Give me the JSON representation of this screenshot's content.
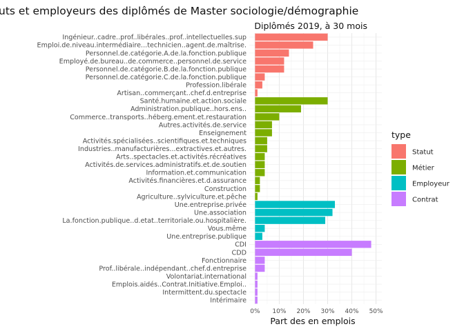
{
  "chart_data": {
    "type": "bar",
    "orientation": "horizontal",
    "title": "uts et employeurs des diplômés de Master sociologie/démographie",
    "subtitle": "Diplômés 2019, à 30 mois",
    "xlabel": "Part des en emplois",
    "ylabel": "",
    "xlim": [
      0,
      0.5
    ],
    "x_ticks": [
      "0%",
      "10%",
      "20%",
      "30%",
      "40%",
      "50%"
    ],
    "grid": true,
    "legend": {
      "title": "type",
      "placement": "right",
      "entries": [
        {
          "name": "Statut",
          "color": "#F8766D"
        },
        {
          "name": "Métier",
          "color": "#7CAE00"
        },
        {
          "name": "Employeur",
          "color": "#00BFC4"
        },
        {
          "name": "Contrat",
          "color": "#C77CFF"
        }
      ]
    },
    "categories": [
      {
        "label": "Ingénieur..cadre..prof..libérales..prof..intellectuelles.sup",
        "value": 0.3,
        "type": "Statut"
      },
      {
        "label": "Emploi.de.niveau.intermédiaire...technicien..agent.de.maîtrise.",
        "value": 0.24,
        "type": "Statut"
      },
      {
        "label": "Personnel.de.catégorie.A.de.la.fonction.publique",
        "value": 0.14,
        "type": "Statut"
      },
      {
        "label": "Employé.de.bureau..de.commerce..personnel.de.service",
        "value": 0.12,
        "type": "Statut"
      },
      {
        "label": "Personnel.de.catégorie.B.de.la.fonction.publique",
        "value": 0.12,
        "type": "Statut"
      },
      {
        "label": "Personnel.de.catégorie.C.de.la.fonction.publique",
        "value": 0.04,
        "type": "Statut"
      },
      {
        "label": "Profession.libérale",
        "value": 0.03,
        "type": "Statut"
      },
      {
        "label": "Artisan..commerçant..chef.d.entreprise",
        "value": 0.01,
        "type": "Statut"
      },
      {
        "label": "Santé.humaine.et.action.sociale",
        "value": 0.3,
        "type": "Métier"
      },
      {
        "label": "Administration.publique..hors.ens..",
        "value": 0.19,
        "type": "Métier"
      },
      {
        "label": "Commerce..transports..héberg.ement.et.restauration",
        "value": 0.1,
        "type": "Métier"
      },
      {
        "label": "Autres.activités.de.service",
        "value": 0.07,
        "type": "Métier"
      },
      {
        "label": "Enseignement",
        "value": 0.07,
        "type": "Métier"
      },
      {
        "label": "Activités.spécialisées..scientifiques.et.techniques",
        "value": 0.05,
        "type": "Métier"
      },
      {
        "label": "Industries..manufacturières...extractives.et.autres.",
        "value": 0.05,
        "type": "Métier"
      },
      {
        "label": "Arts..spectacles.et.activités.récréatives",
        "value": 0.04,
        "type": "Métier"
      },
      {
        "label": "Activités.de.services.administratifs.et.de.soutien",
        "value": 0.04,
        "type": "Métier"
      },
      {
        "label": "Information.et.communication",
        "value": 0.04,
        "type": "Métier"
      },
      {
        "label": "Activités.financières.et.d.assurance",
        "value": 0.02,
        "type": "Métier"
      },
      {
        "label": "Construction",
        "value": 0.02,
        "type": "Métier"
      },
      {
        "label": "Agriculture..sylviculture.et.pêche",
        "value": 0.01,
        "type": "Métier"
      },
      {
        "label": "Une.entreprise.privée",
        "value": 0.33,
        "type": "Employeur"
      },
      {
        "label": "Une.association",
        "value": 0.32,
        "type": "Employeur"
      },
      {
        "label": "La.fonction.publique..d.etat..territoriale.ou.hospitalière.",
        "value": 0.29,
        "type": "Employeur"
      },
      {
        "label": "Vous.même",
        "value": 0.04,
        "type": "Employeur"
      },
      {
        "label": "Une.entreprise.publique",
        "value": 0.03,
        "type": "Employeur"
      },
      {
        "label": "CDI",
        "value": 0.48,
        "type": "Contrat"
      },
      {
        "label": "CDD",
        "value": 0.4,
        "type": "Contrat"
      },
      {
        "label": "Fonctionnaire",
        "value": 0.04,
        "type": "Contrat"
      },
      {
        "label": "Prof..libérale..indépendant..chef.d.entreprise",
        "value": 0.04,
        "type": "Contrat"
      },
      {
        "label": "Volontariat.international",
        "value": 0.01,
        "type": "Contrat"
      },
      {
        "label": "Emplois.aidés..Contrat.Initiative.Emploi..",
        "value": 0.01,
        "type": "Contrat"
      },
      {
        "label": "Intermittent.du.spectacle",
        "value": 0.01,
        "type": "Contrat"
      },
      {
        "label": "Intérimaire",
        "value": 0.01,
        "type": "Contrat"
      }
    ]
  }
}
